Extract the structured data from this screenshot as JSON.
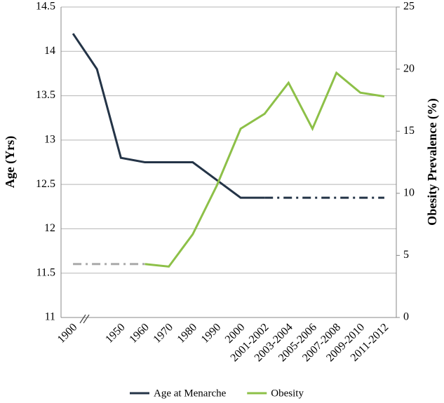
{
  "chart_data": {
    "type": "line",
    "y_label": "Age (Yrs)",
    "y2_label": "Obesity Prevalence (%)",
    "categories": [
      "1900",
      null,
      "1950",
      "1960",
      "1970",
      "1980",
      "1990",
      "2000",
      "2001-2002",
      "2003-2004",
      "2005-2006",
      "2007-2008",
      "2009-2010",
      "2011-2012"
    ],
    "ylim": [
      11,
      14.5
    ],
    "yticks": [
      11,
      11.5,
      12,
      12.5,
      13,
      13.5,
      14,
      14.5
    ],
    "y2lim": [
      0,
      25
    ],
    "y2ticks": [
      0,
      5,
      10,
      15,
      20,
      25
    ],
    "grid": true,
    "series": [
      {
        "name": "Age at Menarche",
        "color": "#243447",
        "values": [
          14.2,
          13.8,
          12.8,
          12.75,
          12.75,
          12.75,
          12.55,
          12.35,
          12.35,
          null,
          null,
          null,
          null,
          null
        ]
      },
      {
        "name": "Obesity",
        "color": "#8dc048",
        "axis": "y2",
        "values": [
          null,
          null,
          null,
          4.3,
          4.1,
          6.7,
          10.6,
          15.2,
          16.4,
          18.9,
          15.2,
          19.7,
          18.1,
          17.8
        ]
      },
      {
        "color": "#aaaaaa",
        "axis": "y2",
        "dash": "dash-dot",
        "values": [
          4.3,
          4.3,
          4.3,
          4.3,
          null,
          null,
          null,
          null,
          null,
          null,
          null,
          null,
          null,
          null
        ]
      },
      {
        "color": "#243447",
        "dash": "dash-dot",
        "values": [
          null,
          null,
          null,
          null,
          null,
          null,
          null,
          null,
          12.35,
          12.35,
          12.35,
          12.35,
          12.35,
          12.35
        ]
      }
    ]
  }
}
